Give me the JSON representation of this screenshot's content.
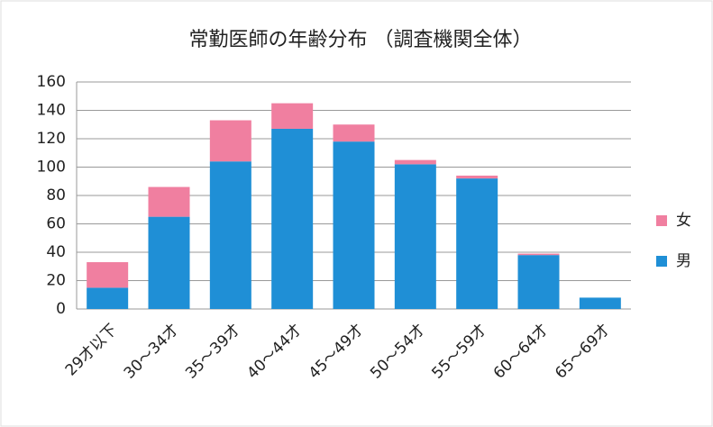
{
  "chart_data": {
    "type": "stacked_bar",
    "title": "常勤医師の年齢分布 （調査機関全体）",
    "categories": [
      "29才以下",
      "30～34才",
      "35～39才",
      "40～44才",
      "45～49才",
      "50～54才",
      "55～59才",
      "60～64才",
      "65～69才"
    ],
    "series": [
      {
        "name": "男",
        "color": "#1f8fd6",
        "values": [
          15,
          65,
          104,
          127,
          118,
          102,
          92,
          38,
          8
        ]
      },
      {
        "name": "女",
        "color": "#f07fa0",
        "values": [
          18,
          21,
          29,
          18,
          12,
          3,
          2,
          1,
          0
        ]
      }
    ],
    "ylim": [
      0,
      160
    ],
    "yticks": [
      0,
      20,
      40,
      60,
      80,
      100,
      120,
      140,
      160
    ],
    "grid": true,
    "legend": "right"
  }
}
